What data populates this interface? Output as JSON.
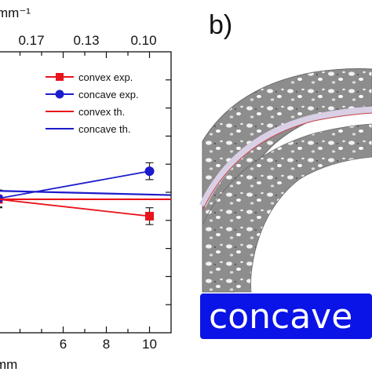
{
  "figure": {
    "panel_b_label": "b)",
    "badge_label": "concave",
    "colors": {
      "convex": "#e8141b",
      "concave": "#1c1ccc",
      "badge": "#0a14e6",
      "micrograph_fill": "#8c8c8c",
      "micrograph_border": "#6a6a6a"
    }
  },
  "chart_data": {
    "type": "line",
    "title": "",
    "xlabel": "mm",
    "top_axis_label": "mm⁻¹",
    "xlim": [
      3.0,
      11.0
    ],
    "ylim": [
      0,
      1
    ],
    "x_ticks": [
      6,
      8,
      10
    ],
    "top_ticks": [
      "0.17",
      "0.13",
      "0.10"
    ],
    "legend_position": "top-right",
    "series": [
      {
        "name": "convex exp.",
        "kind": "experimental",
        "marker": "square",
        "color": "#e8141b",
        "x": [
          3.0,
          10.0
        ],
        "y": [
          0.475,
          0.415
        ],
        "yerr": [
          0.03,
          0.03
        ]
      },
      {
        "name": "concave exp.",
        "kind": "experimental",
        "marker": "circle",
        "color": "#1c1ccc",
        "x": [
          3.0,
          10.0
        ],
        "y": [
          0.478,
          0.575
        ],
        "yerr": [
          0.03,
          0.03
        ]
      },
      {
        "name": "convex th.",
        "kind": "theory",
        "color": "#e8141b",
        "x": [
          3.0,
          11.0
        ],
        "y": [
          0.475,
          0.475
        ]
      },
      {
        "name": "concave th.",
        "kind": "theory",
        "color": "#1c1ccc",
        "x": [
          3.0,
          11.0
        ],
        "y": [
          0.505,
          0.49
        ]
      }
    ]
  }
}
